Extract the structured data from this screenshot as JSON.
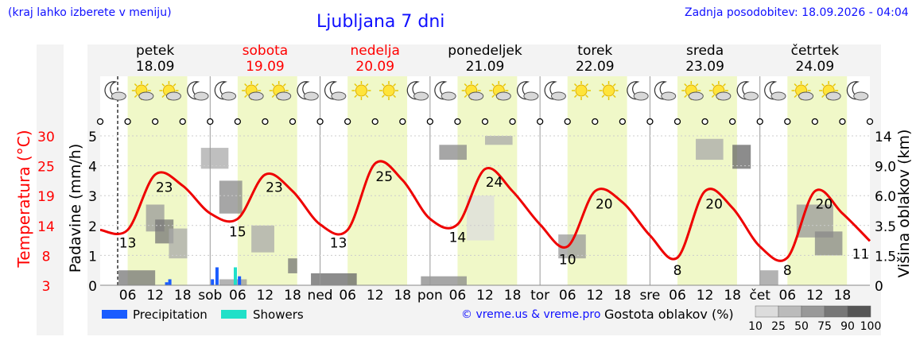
{
  "header": {
    "region_link": "(kraj lahko izberete v meniju)",
    "title": "Ljubljana 7 dni",
    "updated": "Zadnja posodobitev: 18.09.2026 - 04:04"
  },
  "days": [
    {
      "name": "petek",
      "date": "18.09",
      "color": "#000000"
    },
    {
      "name": "sobota",
      "date": "19.09",
      "color": "#ff0000"
    },
    {
      "name": "nedelja",
      "date": "20.09",
      "color": "#ff0000"
    },
    {
      "name": "ponedeljek",
      "date": "21.09",
      "color": "#000000"
    },
    {
      "name": "torek",
      "date": "22.09",
      "color": "#000000"
    },
    {
      "name": "sreda",
      "date": "23.09",
      "color": "#000000"
    },
    {
      "name": "četrtek",
      "date": "24.09",
      "color": "#000000"
    }
  ],
  "weather_icons": [
    [
      "moon-cloud-icon",
      "sun-cloud-icon",
      "sun-cloud-icon",
      "moon-cloud-icon"
    ],
    [
      "moon-cloud-icon",
      "sun-cloud-icon",
      "sun-cloud-icon",
      "moon-cloud-icon"
    ],
    [
      "moon-cloud-icon",
      "sun-icon",
      "sun-icon",
      "moon-cloud-icon"
    ],
    [
      "moon-cloud-icon",
      "sun-cloud-icon",
      "sun-cloud-icon",
      "moon-cloud-icon"
    ],
    [
      "moon-cloud-icon",
      "sun-icon",
      "sun-icon",
      "moon-cloud-icon"
    ],
    [
      "moon-cloud-icon",
      "sun-cloud-icon",
      "sun-cloud-icon",
      "moon-cloud-icon"
    ],
    [
      "moon-cloud-icon",
      "sun-cloud-icon",
      "sun-cloud-icon",
      "moon-cloud-icon"
    ]
  ],
  "axes": {
    "temperature_label": "Temperatura (°C)",
    "precip_label": "Padavine (mm/h)",
    "cloud_label": "Višina oblakov (km)"
  },
  "legend": {
    "precipitation": "Precipitation",
    "showers": "Showers",
    "precip_color": "#1a5cff",
    "showers_color": "#20e0c8",
    "copyright": "© vreme.us & vreme.pro",
    "density_title": "Gostota oblakov (%)",
    "density_ticks": [
      "10",
      "25",
      "50",
      "75",
      "90",
      "100"
    ]
  },
  "chart_data": {
    "type": "line",
    "title": "Ljubljana 7 dni",
    "x_ticks": [
      "06",
      "12",
      "18",
      "sob",
      "06",
      "12",
      "18",
      "ned",
      "06",
      "12",
      "18",
      "pon",
      "06",
      "12",
      "18",
      "tor",
      "06",
      "12",
      "18",
      "sre",
      "06",
      "12",
      "18",
      "čet",
      "06",
      "12",
      "18"
    ],
    "y_left_label": "Padavine (mm/h)",
    "y_left_ticks": [
      "0",
      "1",
      "2",
      "3",
      "4",
      "5"
    ],
    "y_left_range": [
      0,
      5
    ],
    "y_temp_ticks": [
      "3",
      "8",
      "14",
      "19",
      "25",
      "30"
    ],
    "y_temp_range": [
      3,
      30
    ],
    "y_right_label": "Višina oblakov (km)",
    "y_right_ticks": [
      "0",
      "1.5",
      "3.5",
      "6.0",
      "9.0",
      "14"
    ],
    "series": [
      {
        "name": "Temperatura (°C)",
        "color": "#ee0000",
        "points": [
          [
            0,
            13
          ],
          [
            6,
            13
          ],
          [
            12,
            23
          ],
          [
            18,
            21
          ],
          [
            24,
            16
          ],
          [
            30,
            15
          ],
          [
            36,
            23
          ],
          [
            42,
            20
          ],
          [
            48,
            14
          ],
          [
            54,
            13
          ],
          [
            60,
            25
          ],
          [
            66,
            22
          ],
          [
            72,
            15
          ],
          [
            78,
            14
          ],
          [
            84,
            24
          ],
          [
            90,
            20
          ],
          [
            96,
            14
          ],
          [
            102,
            10
          ],
          [
            108,
            20
          ],
          [
            114,
            18
          ],
          [
            120,
            12
          ],
          [
            126,
            8
          ],
          [
            132,
            20
          ],
          [
            138,
            17
          ],
          [
            144,
            10
          ],
          [
            150,
            8
          ],
          [
            156,
            20
          ],
          [
            162,
            16
          ],
          [
            168,
            11
          ]
        ]
      }
    ],
    "temperature_labels": [
      {
        "h": 6,
        "v": "13"
      },
      {
        "h": 14,
        "v": "23"
      },
      {
        "h": 30,
        "v": "15"
      },
      {
        "h": 38,
        "v": "23"
      },
      {
        "h": 52,
        "v": "13"
      },
      {
        "h": 62,
        "v": "25"
      },
      {
        "h": 78,
        "v": "14"
      },
      {
        "h": 86,
        "v": "24"
      },
      {
        "h": 102,
        "v": "10"
      },
      {
        "h": 110,
        "v": "20"
      },
      {
        "h": 126,
        "v": "8"
      },
      {
        "h": 134,
        "v": "20"
      },
      {
        "h": 150,
        "v": "8"
      },
      {
        "h": 158,
        "v": "20"
      },
      {
        "h": 166,
        "v": "11"
      }
    ],
    "precipitation_bars": [
      {
        "h": 14.5,
        "v": 0.1,
        "kind": "precip"
      },
      {
        "h": 15.2,
        "v": 0.2,
        "kind": "precip"
      },
      {
        "h": 24.5,
        "v": 0.2,
        "kind": "precip"
      },
      {
        "h": 25.5,
        "v": 0.6,
        "kind": "precip"
      },
      {
        "h": 29.5,
        "v": 0.6,
        "kind": "showers"
      },
      {
        "h": 30.4,
        "v": 0.3,
        "kind": "precip"
      }
    ]
  }
}
